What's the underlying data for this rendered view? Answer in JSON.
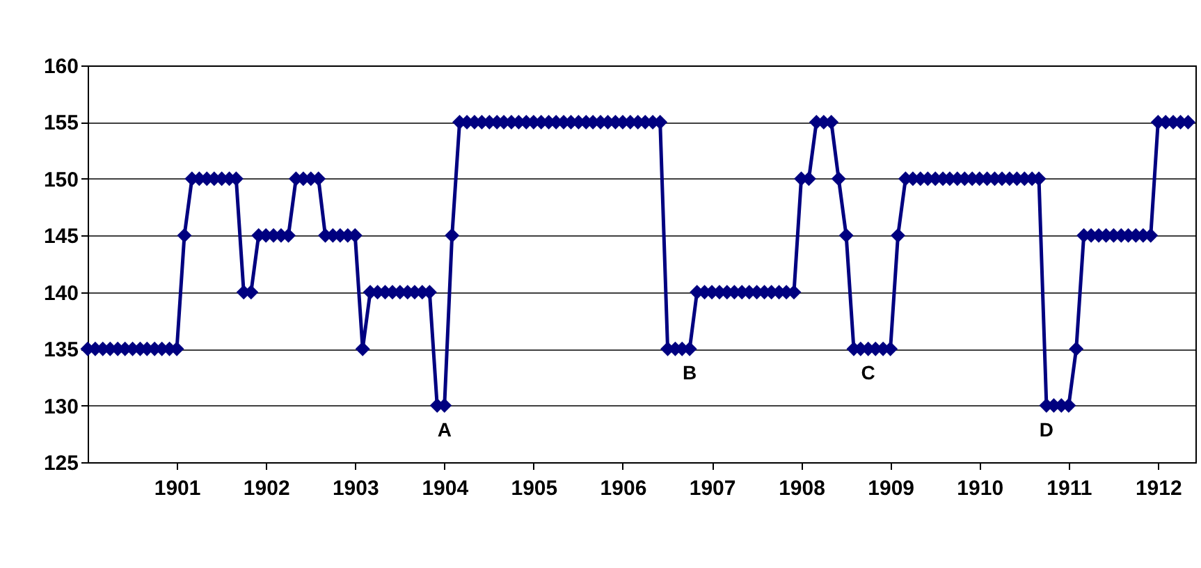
{
  "chart_data": {
    "type": "line",
    "x": [
      "1900-07",
      "1900-08",
      "1900-09",
      "1900-10",
      "1900-11",
      "1900-12",
      "1901-01",
      "1901-02",
      "1901-03",
      "1901-04",
      "1901-05",
      "1901-06",
      "1901-07",
      "1901-08",
      "1901-09",
      "1901-10",
      "1901-11",
      "1901-12",
      "1902-01",
      "1902-02",
      "1902-03",
      "1902-04",
      "1902-05",
      "1902-06",
      "1902-07",
      "1902-08",
      "1902-09",
      "1902-10",
      "1902-11",
      "1902-12",
      "1903-01",
      "1903-02",
      "1903-03",
      "1903-04",
      "1903-05",
      "1903-06",
      "1903-07",
      "1903-08",
      "1903-09",
      "1903-10",
      "1903-11",
      "1903-12",
      "1904-01",
      "1904-02",
      "1904-03",
      "1904-04",
      "1904-05",
      "1904-06",
      "1904-07",
      "1904-08",
      "1904-09",
      "1904-10",
      "1904-11",
      "1904-12",
      "1905-01",
      "1905-02",
      "1905-03",
      "1905-04",
      "1905-05",
      "1905-06",
      "1905-07",
      "1905-08",
      "1905-09",
      "1905-10",
      "1905-11",
      "1905-12",
      "1906-01",
      "1906-02",
      "1906-03",
      "1906-04",
      "1906-05",
      "1906-06",
      "1906-07",
      "1906-08",
      "1906-09",
      "1906-10",
      "1906-11",
      "1906-12",
      "1907-01",
      "1907-02",
      "1907-03",
      "1907-04",
      "1907-05",
      "1907-06",
      "1907-07",
      "1907-08",
      "1907-09",
      "1907-10",
      "1907-11",
      "1907-12",
      "1908-01",
      "1908-02",
      "1908-03",
      "1908-04",
      "1908-05",
      "1908-06",
      "1908-07",
      "1908-08",
      "1908-09",
      "1908-10",
      "1908-11",
      "1908-12",
      "1909-01",
      "1909-02",
      "1909-03",
      "1909-04",
      "1909-05",
      "1909-06",
      "1909-07",
      "1909-08",
      "1909-09",
      "1909-10",
      "1909-11",
      "1909-12",
      "1910-01",
      "1910-02",
      "1910-03",
      "1910-04",
      "1910-05",
      "1910-06",
      "1910-07",
      "1910-08",
      "1910-09",
      "1910-10",
      "1910-11",
      "1910-12",
      "1911-01",
      "1911-02",
      "1911-03",
      "1911-04",
      "1911-05",
      "1911-06",
      "1911-07",
      "1911-08",
      "1911-09",
      "1911-10",
      "1911-11",
      "1911-12",
      "1912-01",
      "1912-02",
      "1912-03",
      "1912-04",
      "1912-05",
      "1912-06",
      "1912-07",
      "1912-08",
      "1912-09",
      "1912-10",
      "1912-11"
    ],
    "series": [
      {
        "color": "#000080",
        "values": [
          135,
          135,
          135,
          135,
          135,
          135,
          135,
          135,
          135,
          135,
          135,
          135,
          135,
          145,
          150,
          150,
          150,
          150,
          150,
          150,
          150,
          140,
          140,
          145,
          145,
          145,
          145,
          145,
          150,
          150,
          150,
          150,
          145,
          145,
          145,
          145,
          145,
          135,
          140,
          140,
          140,
          140,
          140,
          140,
          140,
          140,
          140,
          130,
          130,
          145,
          155,
          155,
          155,
          155,
          155,
          155,
          155,
          155,
          155,
          155,
          155,
          155,
          155,
          155,
          155,
          155,
          155,
          155,
          155,
          155,
          155,
          155,
          155,
          155,
          155,
          155,
          155,
          155,
          135,
          135,
          135,
          135,
          140,
          140,
          140,
          140,
          140,
          140,
          140,
          140,
          140,
          140,
          140,
          140,
          140,
          140,
          150,
          150,
          155,
          155,
          155,
          150,
          145,
          135,
          135,
          135,
          135,
          135,
          135,
          145,
          150,
          150,
          150,
          150,
          150,
          150,
          150,
          150,
          150,
          150,
          150,
          150,
          150,
          150,
          150,
          150,
          150,
          150,
          150,
          130,
          130,
          130,
          130,
          135,
          145,
          145,
          145,
          145,
          145,
          145,
          145,
          145,
          145,
          145,
          155,
          155,
          155,
          155,
          155
        ]
      }
    ],
    "xlim": [
      "1900-07",
      "1912-12"
    ],
    "xticks": [
      {
        "value": "1901-07",
        "label": "1901"
      },
      {
        "value": "1902-07",
        "label": "1902"
      },
      {
        "value": "1903-07",
        "label": "1903"
      },
      {
        "value": "1904-07",
        "label": "1904"
      },
      {
        "value": "1905-07",
        "label": "1905"
      },
      {
        "value": "1906-07",
        "label": "1906"
      },
      {
        "value": "1907-07",
        "label": "1907"
      },
      {
        "value": "1908-07",
        "label": "1908"
      },
      {
        "value": "1909-07",
        "label": "1909"
      },
      {
        "value": "1910-07",
        "label": "1910"
      },
      {
        "value": "1911-07",
        "label": "1911"
      },
      {
        "value": "1912-07",
        "label": "1912"
      }
    ],
    "ylim": [
      125,
      160
    ],
    "yticks": [
      125,
      130,
      135,
      140,
      145,
      150,
      155,
      160
    ],
    "grid": "y",
    "marker": "diamond",
    "line_style": "solid",
    "annotations": [
      {
        "text": "A",
        "x": "1904-07",
        "y": 130
      },
      {
        "text": "B",
        "x": "1907-04",
        "y": 135
      },
      {
        "text": "C",
        "x": "1909-04",
        "y": 135
      },
      {
        "text": "D",
        "x": "1911-04",
        "y": 130
      }
    ]
  }
}
